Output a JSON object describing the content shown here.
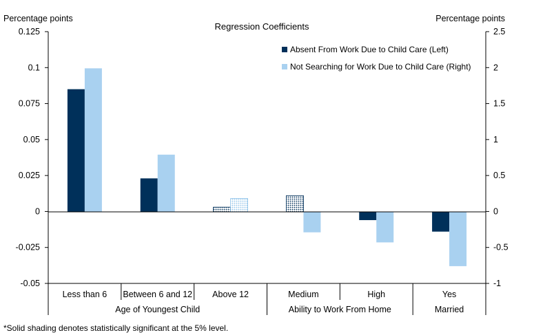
{
  "chart_data": {
    "type": "bar",
    "title": "Regression Coefficients",
    "left_axis_label": "Percentage  points",
    "right_axis_label": "Percentage  points",
    "left_ylim": [
      -0.05,
      0.125
    ],
    "left_ticks": [
      -0.05,
      -0.025,
      0,
      0.025,
      0.05,
      0.075,
      0.1,
      0.125
    ],
    "left_tick_labels": [
      "-0.05",
      "-0.025",
      "0",
      "0.025",
      "0.05",
      "0.075",
      "0.1",
      "0.125"
    ],
    "right_ylim": [
      -1,
      2.5
    ],
    "right_ticks": [
      -1,
      -0.5,
      0,
      0.5,
      1,
      1.5,
      2,
      2.5
    ],
    "right_tick_labels": [
      "-1",
      "-0.5",
      "0",
      "0.5",
      "1",
      "1.5",
      "2",
      "2.5"
    ],
    "categories": [
      "Less than 6",
      "Between 6 and 12",
      "Above 12",
      "Medium",
      "High",
      "Yes"
    ],
    "groups": [
      {
        "label": "Age of Youngest Child",
        "span": [
          0,
          2
        ]
      },
      {
        "label": "Ability to Work From Home",
        "span": [
          3,
          4
        ]
      },
      {
        "label": "Married",
        "span": [
          5,
          5
        ]
      }
    ],
    "series": [
      {
        "name": "Absent From Work Due to Child Care (Left)",
        "axis": "left",
        "color": "#00305a",
        "values": [
          0.085,
          0.023,
          0.003,
          0.011,
          -0.006,
          -0.014
        ],
        "significant": [
          true,
          true,
          false,
          false,
          true,
          true
        ]
      },
      {
        "name": "Not Searching for Work Due to Child Care (Right)",
        "axis": "right",
        "color": "#a9d1f0",
        "values": [
          1.99,
          0.79,
          0.18,
          -0.29,
          -0.43,
          -0.76
        ],
        "significant": [
          true,
          true,
          false,
          true,
          true,
          true
        ]
      }
    ],
    "legend_position": "top-right",
    "footnote": "*Solid shading denotes statistically significant at the 5% level."
  }
}
